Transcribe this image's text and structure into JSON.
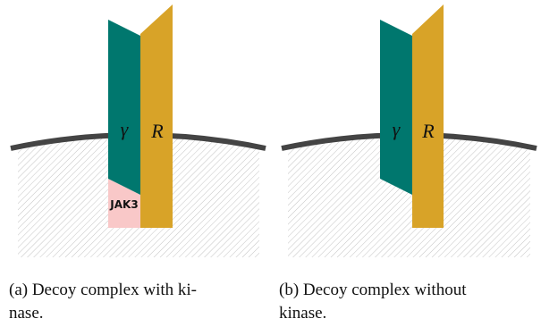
{
  "panels": [
    {
      "gamma": "γ",
      "receptor": "R",
      "kinase": "JAK3",
      "caption": [
        "(a) Decoy complex with ki-",
        "nase."
      ]
    },
    {
      "gamma": "γ",
      "receptor": "R",
      "caption": [
        "(b) Decoy complex without",
        "kinase."
      ]
    }
  ]
}
